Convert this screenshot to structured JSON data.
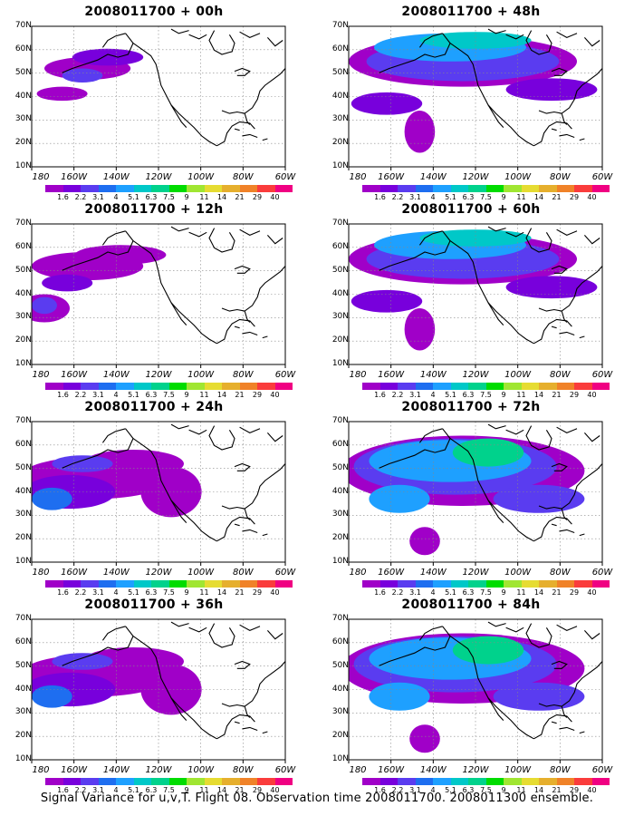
{
  "figure": {
    "caption": "Signal Variance for u,v,T. Flight 08. Observation time 2008011700. 2008011300 ensemble."
  },
  "latitude_labels": [
    "70N",
    "60N",
    "50N",
    "40N",
    "30N",
    "20N",
    "10N"
  ],
  "longitude_labels": [
    "180",
    "160W",
    "140W",
    "120W",
    "100W",
    "80W",
    "60W"
  ],
  "colorbar": {
    "labels": [
      "1.6",
      "2.2",
      "3.1",
      "4",
      "5.1",
      "6.3",
      "7.5",
      "9",
      "11",
      "14",
      "21",
      "29",
      "40"
    ],
    "colors": [
      "#a000c8",
      "#7800dc",
      "#5a3cf0",
      "#1e6ef0",
      "#1ea0ff",
      "#00c8c8",
      "#00d28c",
      "#00dc00",
      "#a0e632",
      "#e6dc32",
      "#e6af2d",
      "#f08228",
      "#fa3c3c",
      "#f00082"
    ]
  },
  "panels": [
    {
      "title": "2008011700 + 00h",
      "intensity": 0
    },
    {
      "title": "2008011700 + 48h",
      "intensity": 3
    },
    {
      "title": "2008011700 + 12h",
      "intensity": 1
    },
    {
      "title": "2008011700 + 60h",
      "intensity": 3
    },
    {
      "title": "2008011700 + 24h",
      "intensity": 2
    },
    {
      "title": "2008011700 + 72h",
      "intensity": 4
    },
    {
      "title": "2008011700 + 36h",
      "intensity": 2
    },
    {
      "title": "2008011700 + 84h",
      "intensity": 4
    }
  ]
}
